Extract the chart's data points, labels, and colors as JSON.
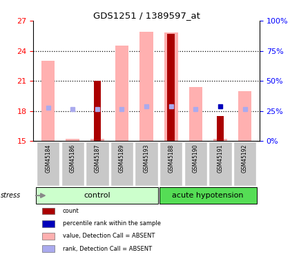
{
  "title": "GDS1251 / 1389597_at",
  "samples": [
    "GSM45184",
    "GSM45186",
    "GSM45187",
    "GSM45189",
    "GSM45193",
    "GSM45188",
    "GSM45190",
    "GSM45191",
    "GSM45192"
  ],
  "n_control": 5,
  "pink_bar_tops": [
    23.0,
    15.2,
    15.2,
    24.5,
    25.9,
    25.8,
    20.4,
    15.2,
    20.0
  ],
  "red_bar_tops": [
    null,
    null,
    21.0,
    null,
    null,
    25.7,
    null,
    17.5,
    null
  ],
  "light_blue_vals": [
    18.3,
    18.2,
    18.2,
    18.2,
    18.5,
    18.5,
    18.2,
    null,
    18.2
  ],
  "solid_blue_vals": [
    null,
    null,
    null,
    null,
    null,
    null,
    null,
    18.5,
    null
  ],
  "ymin": 15,
  "ymax": 27,
  "yticks_left": [
    15,
    18,
    21,
    24,
    27
  ],
  "yticks_right": [
    0,
    25,
    50,
    75,
    100
  ],
  "ytick_labels_left": [
    "15",
    "18",
    "21",
    "24",
    "27"
  ],
  "ytick_labels_right": [
    "0%",
    "25%",
    "50%",
    "75%",
    "100%"
  ],
  "hlines": [
    18,
    21,
    24
  ],
  "pink_color": "#FFB0B0",
  "red_color": "#AA0000",
  "blue_color": "#0000BB",
  "light_blue_color": "#AAAAEE",
  "ctrl_light_green": "#CCFFCC",
  "acute_green": "#55DD55",
  "label_gray": "#C8C8C8",
  "bar_width": 0.55,
  "red_bar_width": 0.3
}
